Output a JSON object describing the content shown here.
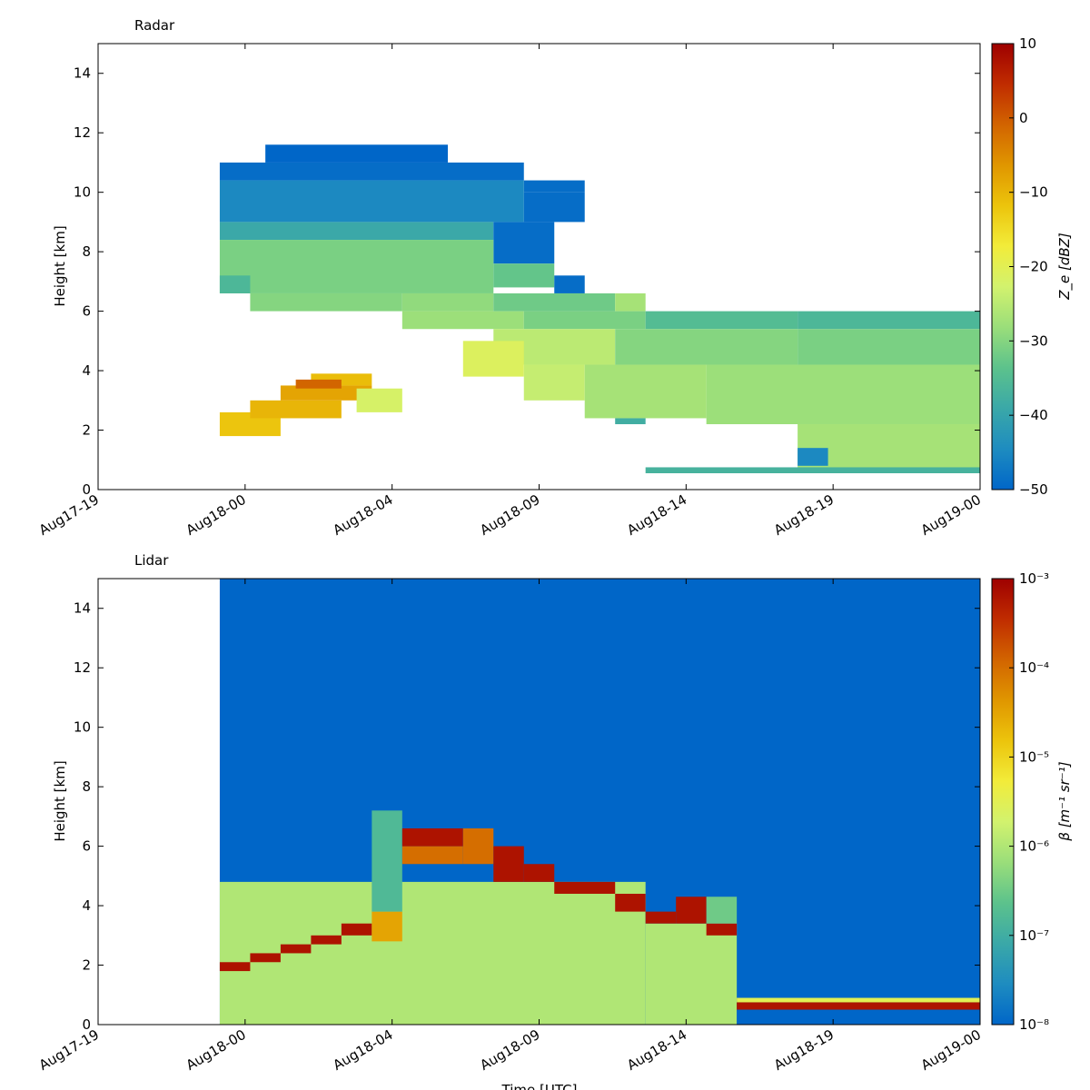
{
  "chart_data": [
    {
      "type": "heatmap",
      "title": "Radar",
      "xlabel": "",
      "ylabel": "Height [km]",
      "xtick_labels": [
        "Aug17-19",
        "Aug18-00",
        "Aug18-04",
        "Aug18-09",
        "Aug18-14",
        "Aug18-19",
        "Aug19-00"
      ],
      "xlim_hours": [
        0,
        29
      ],
      "ylim": [
        0,
        15
      ],
      "yticks": [
        0,
        2,
        4,
        6,
        8,
        10,
        12,
        14
      ],
      "grid": false,
      "colorbar": {
        "label": "Z_e [dBZ]",
        "scale": "linear",
        "range": [
          -50,
          10
        ],
        "ticks": [
          "10",
          "0",
          "−10",
          "−20",
          "−30",
          "−40",
          "−50"
        ],
        "tick_values": [
          10,
          0,
          -10,
          -20,
          -30,
          -40,
          -50
        ],
        "colormap": [
          "#0066c8",
          "#1e8cc0",
          "#3aa8a8",
          "#5cc28c",
          "#9ade7a",
          "#d2f26e",
          "#f2ec3a",
          "#ecc40c",
          "#e09600",
          "#d26400",
          "#c02c00",
          "#9e0000"
        ]
      },
      "time_start_hour": 4.0,
      "time_end_hour": 29.0,
      "regions": [
        {
          "t": [
            4.0,
            14.0
          ],
          "h": [
            10.4,
            11.0
          ],
          "value": -49
        },
        {
          "t": [
            14.0,
            16.0
          ],
          "h": [
            10.0,
            10.4
          ],
          "value": -49
        },
        {
          "t": [
            5.5,
            11.5
          ],
          "h": [
            11.0,
            11.6
          ],
          "value": -50
        },
        {
          "t": [
            4.0,
            14.0
          ],
          "h": [
            9.0,
            10.4
          ],
          "value": -45
        },
        {
          "t": [
            14.0,
            16.0
          ],
          "h": [
            9.0,
            10.0
          ],
          "value": -49
        },
        {
          "t": [
            4.0,
            13.0
          ],
          "h": [
            8.4,
            9.0
          ],
          "value": -39
        },
        {
          "t": [
            13.0,
            15.0
          ],
          "h": [
            7.6,
            9.0
          ],
          "value": -49
        },
        {
          "t": [
            4.0,
            13.0
          ],
          "h": [
            6.6,
            8.4
          ],
          "value": -31
        },
        {
          "t": [
            13.0,
            15.0
          ],
          "h": [
            6.8,
            7.6
          ],
          "value": -33
        },
        {
          "t": [
            15.0,
            16.0
          ],
          "h": [
            6.6,
            7.2
          ],
          "value": -49
        },
        {
          "t": [
            4.0,
            5.0
          ],
          "h": [
            6.6,
            7.2
          ],
          "value": -36
        },
        {
          "t": [
            5.0,
            10.0
          ],
          "h": [
            6.0,
            6.6
          ],
          "value": -30
        },
        {
          "t": [
            10.0,
            13.0
          ],
          "h": [
            6.0,
            6.6
          ],
          "value": -29
        },
        {
          "t": [
            13.0,
            17.0
          ],
          "h": [
            6.0,
            6.6
          ],
          "value": -32
        },
        {
          "t": [
            17.0,
            18.0
          ],
          "h": [
            6.0,
            6.6
          ],
          "value": -27
        },
        {
          "t": [
            10.0,
            14.0
          ],
          "h": [
            5.4,
            6.0
          ],
          "value": -28
        },
        {
          "t": [
            14.0,
            18.0
          ],
          "h": [
            5.4,
            6.0
          ],
          "value": -31
        },
        {
          "t": [
            18.0,
            23.0
          ],
          "h": [
            5.4,
            6.0
          ],
          "value": -35
        },
        {
          "t": [
            23.0,
            29.0
          ],
          "h": [
            5.4,
            6.0
          ],
          "value": -36
        },
        {
          "t": [
            13.0,
            17.0
          ],
          "h": [
            4.2,
            5.4
          ],
          "value": -25
        },
        {
          "t": [
            17.0,
            23.0
          ],
          "h": [
            4.2,
            5.4
          ],
          "value": -30
        },
        {
          "t": [
            23.0,
            29.0
          ],
          "h": [
            4.2,
            5.4
          ],
          "value": -31
        },
        {
          "t": [
            12.0,
            14.0
          ],
          "h": [
            3.8,
            5.0
          ],
          "value": -21
        },
        {
          "t": [
            14.0,
            16.0
          ],
          "h": [
            3.0,
            4.2
          ],
          "value": -24
        },
        {
          "t": [
            16.0,
            20.0
          ],
          "h": [
            2.4,
            4.2
          ],
          "value": -27
        },
        {
          "t": [
            20.0,
            29.0
          ],
          "h": [
            2.2,
            4.2
          ],
          "value": -28
        },
        {
          "t": [
            17.0,
            18.0
          ],
          "h": [
            2.2,
            2.4
          ],
          "value": -38
        },
        {
          "t": [
            23.0,
            29.0
          ],
          "h": [
            0.6,
            2.2
          ],
          "value": -27
        },
        {
          "t": [
            23.0,
            24.0
          ],
          "h": [
            0.8,
            1.4
          ],
          "value": -45
        },
        {
          "t": [
            18.0,
            29.0
          ],
          "h": [
            0.55,
            0.75
          ],
          "value": -37
        },
        {
          "t": [
            4.0,
            6.0
          ],
          "h": [
            1.8,
            2.6
          ],
          "value": -12
        },
        {
          "t": [
            5.0,
            8.0
          ],
          "h": [
            2.4,
            3.0
          ],
          "value": -10
        },
        {
          "t": [
            6.0,
            9.0
          ],
          "h": [
            3.0,
            3.5
          ],
          "value": -8
        },
        {
          "t": [
            7.0,
            9.0
          ],
          "h": [
            3.5,
            3.9
          ],
          "value": -11
        },
        {
          "t": [
            8.5,
            10.0
          ],
          "h": [
            2.6,
            3.4
          ],
          "value": -22
        },
        {
          "t": [
            6.5,
            8.0
          ],
          "h": [
            3.4,
            3.7
          ],
          "value": -1
        }
      ]
    },
    {
      "type": "heatmap",
      "title": "Lidar",
      "xlabel": "Time [UTC]",
      "ylabel": "Height [km]",
      "xtick_labels": [
        "Aug17-19",
        "Aug18-00",
        "Aug18-04",
        "Aug18-09",
        "Aug18-14",
        "Aug18-19",
        "Aug19-00"
      ],
      "xlim_hours": [
        0,
        29
      ],
      "ylim": [
        0,
        15
      ],
      "yticks": [
        0,
        2,
        4,
        6,
        8,
        10,
        12,
        14
      ],
      "grid": false,
      "colorbar": {
        "label": "β [m⁻¹ sr⁻¹]",
        "scale": "log",
        "range": [
          1e-08,
          0.001
        ],
        "ticks": [
          "10⁻³",
          "10⁻⁴",
          "10⁻⁵",
          "10⁻⁶",
          "10⁻⁷",
          "10⁻⁸"
        ],
        "tick_exponents": [
          -3,
          -4,
          -5,
          -6,
          -7,
          -8
        ],
        "colormap": [
          "#0066c8",
          "#1e8cc0",
          "#3aa8a8",
          "#5cc28c",
          "#9ade7a",
          "#d2f26e",
          "#f2ec3a",
          "#ecc40c",
          "#e09600",
          "#d26400",
          "#c02c00",
          "#9e0000"
        ]
      },
      "time_start_hour": 4.0,
      "time_end_hour": 29.0,
      "background_value_log10": -8,
      "regions": [
        {
          "t": [
            4.0,
            18.0
          ],
          "h": [
            0.0,
            4.8
          ],
          "value_log10": -6.0
        },
        {
          "t": [
            4.0,
            5.0
          ],
          "h": [
            1.8,
            2.1
          ],
          "value_log10": -3.2
        },
        {
          "t": [
            5.0,
            6.0
          ],
          "h": [
            2.1,
            2.4
          ],
          "value_log10": -3.2
        },
        {
          "t": [
            6.0,
            7.0
          ],
          "h": [
            2.4,
            2.7
          ],
          "value_log10": -3.2
        },
        {
          "t": [
            7.0,
            8.0
          ],
          "h": [
            2.7,
            3.0
          ],
          "value_log10": -3.2
        },
        {
          "t": [
            8.0,
            9.0
          ],
          "h": [
            3.0,
            3.4
          ],
          "value_log10": -3.2
        },
        {
          "t": [
            9.0,
            10.0
          ],
          "h": [
            2.8,
            3.8
          ],
          "value_log10": -4.5
        },
        {
          "t": [
            9.0,
            10.0
          ],
          "h": [
            3.8,
            7.2
          ],
          "value_log10": -6.8
        },
        {
          "t": [
            10.0,
            12.0
          ],
          "h": [
            5.4,
            6.0
          ],
          "value_log10": -4.0
        },
        {
          "t": [
            10.0,
            12.0
          ],
          "h": [
            6.0,
            6.6
          ],
          "value_log10": -3.2
        },
        {
          "t": [
            12.0,
            13.0
          ],
          "h": [
            5.4,
            6.6
          ],
          "value_log10": -4.0
        },
        {
          "t": [
            13.0,
            14.0
          ],
          "h": [
            4.8,
            6.0
          ],
          "value_log10": -3.2
        },
        {
          "t": [
            14.0,
            15.0
          ],
          "h": [
            4.8,
            5.4
          ],
          "value_log10": -3.2
        },
        {
          "t": [
            15.0,
            17.0
          ],
          "h": [
            4.4,
            4.8
          ],
          "value_log10": -3.2
        },
        {
          "t": [
            17.0,
            18.0
          ],
          "h": [
            3.8,
            4.4
          ],
          "value_log10": -3.2
        },
        {
          "t": [
            18.0,
            21.0
          ],
          "h": [
            0.0,
            3.4
          ],
          "value_log10": -6.0
        },
        {
          "t": [
            18.0,
            19.0
          ],
          "h": [
            3.4,
            3.8
          ],
          "value_log10": -3.2
        },
        {
          "t": [
            19.0,
            20.0
          ],
          "h": [
            3.4,
            4.3
          ],
          "value_log10": -3.2
        },
        {
          "t": [
            20.0,
            21.0
          ],
          "h": [
            3.0,
            3.4
          ],
          "value_log10": -3.2
        },
        {
          "t": [
            20.0,
            21.0
          ],
          "h": [
            3.4,
            4.3
          ],
          "value_log10": -6.5
        },
        {
          "t": [
            21.0,
            29.0
          ],
          "h": [
            0.5,
            0.75
          ],
          "value_log10": -3.2
        },
        {
          "t": [
            21.0,
            29.0
          ],
          "h": [
            0.75,
            0.9
          ],
          "value_log10": -5.5
        },
        {
          "t": [
            21.0,
            29.0
          ],
          "h": [
            0.0,
            0.5
          ],
          "value_log10": -8.0
        }
      ]
    }
  ]
}
